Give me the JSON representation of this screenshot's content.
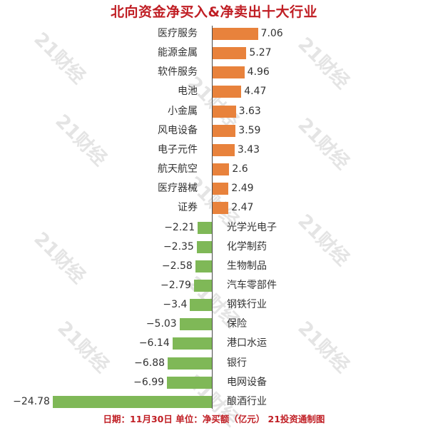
{
  "chart_data": {
    "type": "bar",
    "orientation": "horizontal",
    "title": "北向资金净买入&净卖出十大行业",
    "footer": "日期：11月30日 单位：净买额（亿元） 21投资通制图",
    "unit": "亿元",
    "xlim": [
      -24.78,
      7.06
    ],
    "positive_color": "#e8823c",
    "negative_color": "#7fb857",
    "title_color": "#c01e24",
    "axis_color": "#4a4a4a",
    "rows": [
      {
        "label": "医疗服务",
        "value": 7.06,
        "display": "7.06"
      },
      {
        "label": "能源金属",
        "value": 5.27,
        "display": "5.27"
      },
      {
        "label": "软件服务",
        "value": 4.96,
        "display": "4.96"
      },
      {
        "label": "电池",
        "value": 4.47,
        "display": "4.47"
      },
      {
        "label": "小金属",
        "value": 3.63,
        "display": "3.63"
      },
      {
        "label": "风电设备",
        "value": 3.59,
        "display": "3.59"
      },
      {
        "label": "电子元件",
        "value": 3.43,
        "display": "3.43"
      },
      {
        "label": "航天航空",
        "value": 2.6,
        "display": "2.6"
      },
      {
        "label": "医疗器械",
        "value": 2.49,
        "display": "2.49"
      },
      {
        "label": "证券",
        "value": 2.47,
        "display": "2.47"
      },
      {
        "label": "光学光电子",
        "value": -2.21,
        "display": "−2.21"
      },
      {
        "label": "化学制药",
        "value": -2.35,
        "display": "−2.35"
      },
      {
        "label": "生物制品",
        "value": -2.58,
        "display": "−2.58"
      },
      {
        "label": "汽车零部件",
        "value": -2.79,
        "display": "−2.79"
      },
      {
        "label": "钢铁行业",
        "value": -3.4,
        "display": "−3.4"
      },
      {
        "label": "保险",
        "value": -5.03,
        "display": "−5.03"
      },
      {
        "label": "港口水运",
        "value": -6.14,
        "display": "−6.14"
      },
      {
        "label": "银行",
        "value": -6.88,
        "display": "−6.88"
      },
      {
        "label": "电网设备",
        "value": -6.99,
        "display": "−6.99"
      },
      {
        "label": "酿酒行业",
        "value": -24.78,
        "display": "−24.78"
      }
    ]
  },
  "watermark": {
    "text": "21财经",
    "color": "#e4e4e4"
  }
}
